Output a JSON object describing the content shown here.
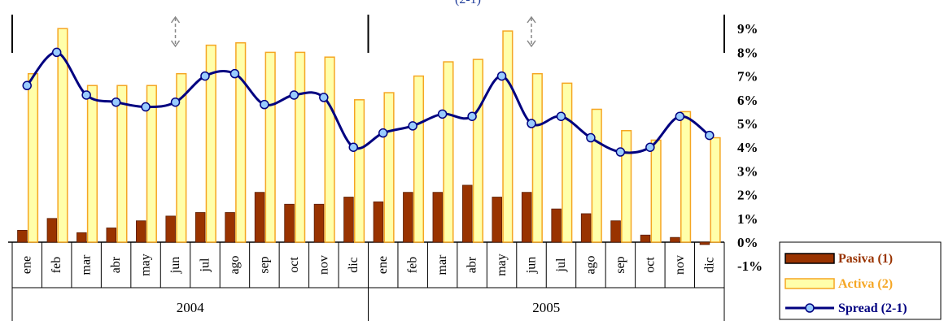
{
  "chart_data": {
    "type": "bar",
    "title_partial": "(2-1)",
    "categories": [
      "ene",
      "feb",
      "mar",
      "abr",
      "may",
      "jun",
      "jul",
      "ago",
      "sep",
      "oct",
      "nov",
      "dic",
      "ene",
      "feb",
      "mar",
      "abr",
      "may",
      "jun",
      "jul",
      "ago",
      "sep",
      "oct",
      "nov",
      "dic"
    ],
    "groups": [
      {
        "label": "2004",
        "count": 12
      },
      {
        "label": "2005",
        "count": 12
      }
    ],
    "series": [
      {
        "name": "Pasiva (1)",
        "type": "bar",
        "color": "#993300",
        "values": [
          0.5,
          1.0,
          0.4,
          0.6,
          0.9,
          1.1,
          1.25,
          1.25,
          2.1,
          1.6,
          1.6,
          1.9,
          1.7,
          2.1,
          2.1,
          2.4,
          1.9,
          2.1,
          1.4,
          1.2,
          0.9,
          0.3,
          0.2,
          -0.1
        ]
      },
      {
        "name": "Activa (2)",
        "type": "bar",
        "color": "#FFFFAA",
        "stroke": "#F5A623",
        "values": [
          7.1,
          9.0,
          6.6,
          6.6,
          6.6,
          7.1,
          8.3,
          8.4,
          8.0,
          8.0,
          7.8,
          6.0,
          6.3,
          7.0,
          7.6,
          7.7,
          8.9,
          7.1,
          6.7,
          5.6,
          4.7,
          4.3,
          5.5,
          4.4
        ]
      },
      {
        "name": "Spread (2-1)",
        "type": "line",
        "color": "#000080",
        "values": [
          6.6,
          8.0,
          6.2,
          5.9,
          5.7,
          5.9,
          7.0,
          7.1,
          5.8,
          6.2,
          6.1,
          4.0,
          4.6,
          4.9,
          5.4,
          5.3,
          7.0,
          5.0,
          5.3,
          4.4,
          3.8,
          4.0,
          5.3,
          4.5
        ]
      }
    ],
    "yticks": [
      "9%",
      "8%",
      "7%",
      "6%",
      "5%",
      "4%",
      "3%",
      "2%",
      "1%",
      "0%",
      "-1%"
    ],
    "ylim": [
      -1,
      9
    ],
    "legend_position": "bottom-right",
    "markers": [
      "up-down-arrow",
      "up-down-arrow"
    ]
  }
}
